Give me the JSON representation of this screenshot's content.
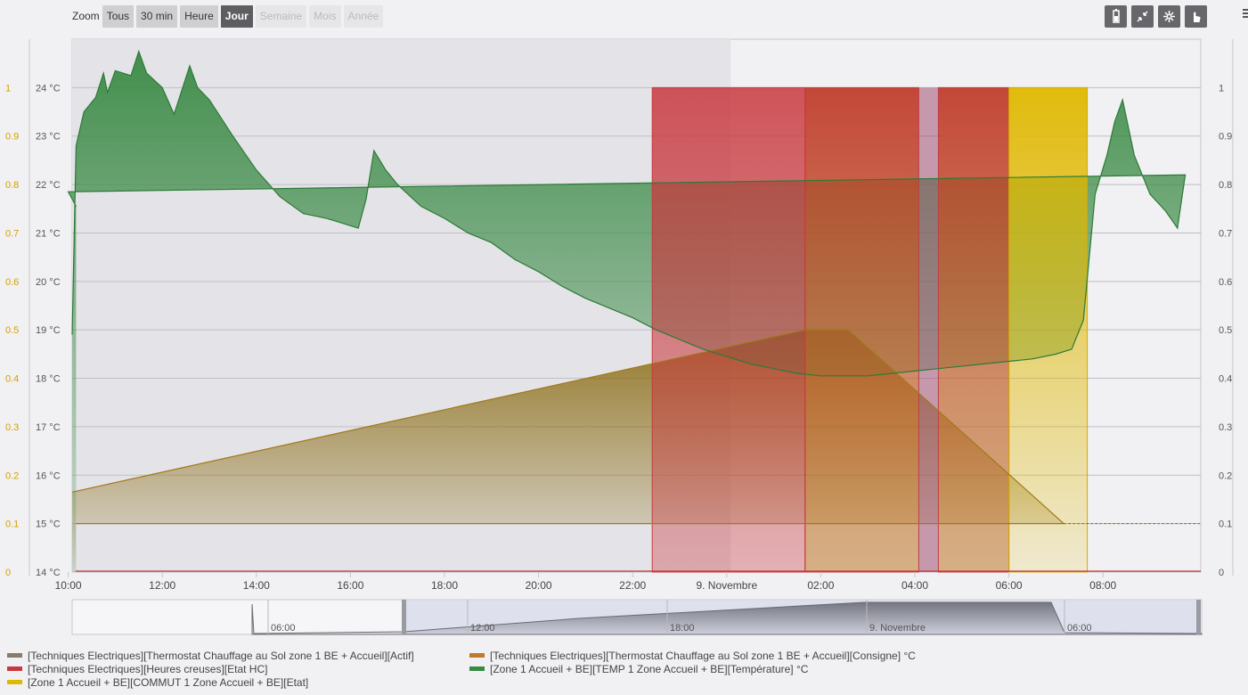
{
  "toolbar": {
    "zoom_label": "Zoom",
    "buttons": [
      {
        "label": "Tous",
        "state": "normal"
      },
      {
        "label": "30 min",
        "state": "normal"
      },
      {
        "label": "Heure",
        "state": "normal"
      },
      {
        "label": "Jour",
        "state": "active"
      },
      {
        "label": "Semaine",
        "state": "disabled"
      },
      {
        "label": "Mois",
        "state": "disabled"
      },
      {
        "label": "Année",
        "state": "disabled"
      }
    ],
    "icons": [
      "battery-icon",
      "collapse-arrows-icon",
      "snowflake-icon",
      "pointer-hand-icon",
      "menu-icon"
    ]
  },
  "colors": {
    "actif": "#8a7a6e",
    "consigne": "#c07a2a",
    "heures_creuses": "#c8383e",
    "temperature": "#3a8a45",
    "commut": "#e0b800",
    "left_axis_labels": "#d4a000",
    "night_band": "#e4e4e8",
    "background": "#f1f1f3"
  },
  "chart_data": {
    "type": "area",
    "x_axis": {
      "ticks": [
        "12:00",
        "14:00",
        "16:00",
        "18:00",
        "20:00",
        "22:00",
        "9. Novembre",
        "02:00",
        "04:00",
        "06:00",
        "08:00",
        "10:00"
      ],
      "range": [
        "2024-11-08 10:05",
        "2024-11-09 10:05"
      ]
    },
    "y_axis_temp": {
      "ticks": [
        "14 °C",
        "15 °C",
        "16 °C",
        "17 °C",
        "18 °C",
        "19 °C",
        "20 °C",
        "21 °C",
        "22 °C",
        "23 °C",
        "24 °C"
      ],
      "range": [
        14,
        25
      ]
    },
    "y_axis_state_left": {
      "ticks": [
        "0",
        "0.1",
        "0.2",
        "0.3",
        "0.4",
        "0.5",
        "0.6",
        "0.7",
        "0.8",
        "0.9",
        "1"
      ],
      "range": [
        0,
        1.1
      ]
    },
    "y_axis_state_right": {
      "ticks": [
        "0",
        "0.1",
        "0.2",
        "0.3",
        "0.4",
        "0.5",
        "0.6",
        "0.7",
        "0.8",
        "0.9",
        "1"
      ],
      "range": [
        0,
        1.1
      ]
    },
    "series": [
      {
        "name": "[Zone 1 Accueil + BE][TEMP 1 Zone Accueil + BE][Température] °C",
        "color_key": "temperature",
        "axis": "temp",
        "points": [
          [
            "10:05",
            18.9
          ],
          [
            "10:10",
            22.8
          ],
          [
            "10:20",
            23.5
          ],
          [
            "10:35",
            23.8
          ],
          [
            "10:45",
            24.3
          ],
          [
            "10:50",
            23.9
          ],
          [
            "11:00",
            24.35
          ],
          [
            "11:20",
            24.25
          ],
          [
            "11:30",
            24.75
          ],
          [
            "11:40",
            24.3
          ],
          [
            "12:00",
            24.0
          ],
          [
            "12:15",
            23.45
          ],
          [
            "12:35",
            24.45
          ],
          [
            "12:45",
            24.0
          ],
          [
            "13:00",
            23.75
          ],
          [
            "13:30",
            23.0
          ],
          [
            "14:00",
            22.3
          ],
          [
            "14:30",
            21.75
          ],
          [
            "15:00",
            21.4
          ],
          [
            "15:15",
            21.35
          ],
          [
            "15:30",
            21.3
          ],
          [
            "15:50",
            21.2
          ],
          [
            "16:10",
            21.1
          ],
          [
            "16:20",
            21.7
          ],
          [
            "16:30",
            22.7
          ],
          [
            "16:45",
            22.3
          ],
          [
            "17:00",
            22.0
          ],
          [
            "17:30",
            21.55
          ],
          [
            "18:00",
            21.3
          ],
          [
            "18:30",
            21.0
          ],
          [
            "19:00",
            20.8
          ],
          [
            "19:30",
            20.45
          ],
          [
            "20:00",
            20.2
          ],
          [
            "20:30",
            19.9
          ],
          [
            "21:00",
            19.65
          ],
          [
            "21:30",
            19.45
          ],
          [
            "22:00",
            19.25
          ],
          [
            "22:30",
            19.0
          ],
          [
            "23:00",
            18.8
          ],
          [
            "23:30",
            18.6
          ],
          [
            "0:00",
            18.45
          ],
          [
            "0:30",
            18.3
          ],
          [
            "1:00",
            18.2
          ],
          [
            "1:30",
            18.1
          ],
          [
            "2:00",
            18.05
          ],
          [
            "2:30",
            18.05
          ],
          [
            "3:00",
            18.05
          ],
          [
            "3:30",
            18.1
          ],
          [
            "4:00",
            18.15
          ],
          [
            "4:30",
            18.2
          ],
          [
            "5:00",
            18.25
          ],
          [
            "5:30",
            18.3
          ],
          [
            "6:00",
            18.35
          ],
          [
            "6:30",
            18.4
          ],
          [
            "7:00",
            18.5
          ],
          [
            "7:20",
            18.6
          ],
          [
            "7:35",
            19.2
          ],
          [
            "7:50",
            21.8
          ],
          [
            "8:05",
            22.6
          ],
          [
            "8:15",
            23.3
          ],
          [
            "8:25",
            23.75
          ],
          [
            "8:40",
            22.6
          ],
          [
            "9:00",
            21.8
          ],
          [
            "9:20",
            21.45
          ],
          [
            "9:35",
            21.1
          ],
          [
            "9:45",
            22.2
          ],
          [
            "10:00",
            21.85
          ],
          [
            "10:10",
            21.55
          ]
        ]
      },
      {
        "name": "[Techniques Electriques][Thermostat Chauffage au Sol zone 1 BE + Accueil][Consigne] °C",
        "color_key": "consigne",
        "axis": "temp",
        "points": [
          [
            "10:05",
            15.65
          ],
          [
            "1:40",
            19.0
          ],
          [
            "2:35",
            19.0
          ],
          [
            "7:10",
            15.0
          ],
          [
            "10:10",
            15.0
          ]
        ]
      },
      {
        "name": "[Techniques Electriques][Heures creuses][Etat HC]",
        "color_key": "heures_creuses",
        "axis": "state",
        "intervals": [
          [
            "22:25",
            "1:40"
          ],
          [
            "1:40",
            "4:05"
          ],
          [
            "4:30",
            "6:00"
          ]
        ],
        "value": 1
      },
      {
        "name": "[Zone 1 Accueil + BE][COMMUT 1 Zone Accueil + BE][Etat]",
        "color_key": "commut",
        "axis": "state",
        "intervals": [
          [
            "6:00",
            "7:40"
          ]
        ],
        "value": 1
      },
      {
        "name": "[Techniques Electriques][Thermostat Chauffage au Sol zone 1 BE + Accueil][Actif]",
        "color_key": "actif",
        "axis": "state",
        "intervals": [],
        "value": 0
      }
    ],
    "navigator": {
      "ticks": [
        "06:00",
        "12:00",
        "18:00",
        "9. Novembre",
        "06:00"
      ]
    }
  },
  "legend": [
    {
      "label": "[Techniques Electriques][Thermostat Chauffage au Sol zone 1 BE + Accueil][Actif]",
      "color_key": "actif"
    },
    {
      "label": "[Techniques Electriques][Thermostat Chauffage au Sol zone 1 BE + Accueil][Consigne] °C",
      "color_key": "consigne"
    },
    {
      "label": "[Techniques Electriques][Heures creuses][Etat HC]",
      "color_key": "heures_creuses"
    },
    {
      "label": "[Zone 1 Accueil + BE][TEMP 1 Zone Accueil + BE][Température] °C",
      "color_key": "temperature"
    },
    {
      "label": "[Zone 1 Accueil + BE][COMMUT 1 Zone Accueil + BE][Etat]",
      "color_key": "commut"
    }
  ]
}
